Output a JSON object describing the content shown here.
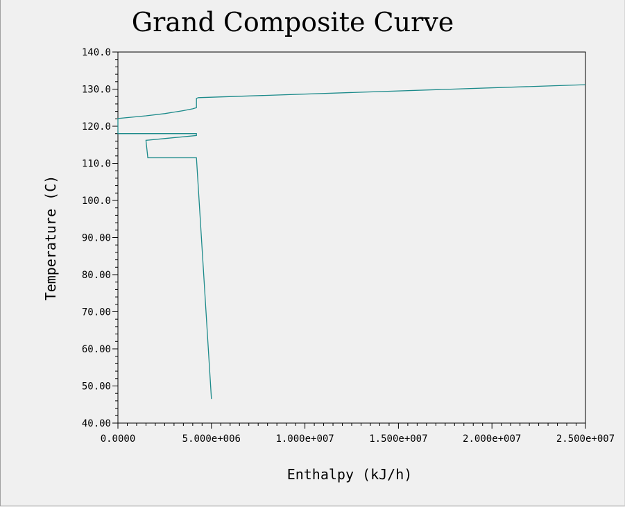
{
  "chart_data": {
    "type": "line",
    "title": "Grand Composite Curve",
    "xlabel": "Enthalpy (kJ/h)",
    "ylabel": "Temperature (C)",
    "xlim": [
      0,
      25000000
    ],
    "ylim": [
      40,
      140
    ],
    "x_ticks": [
      0,
      5000000,
      10000000,
      15000000,
      20000000,
      25000000
    ],
    "x_tick_labels": [
      "0.0000",
      "5.000e+006",
      "1.000e+007",
      "1.500e+007",
      "2.000e+007",
      "2.500e+007"
    ],
    "y_ticks": [
      40,
      50,
      60,
      70,
      80,
      90,
      100,
      110,
      120,
      130,
      140
    ],
    "y_tick_labels": [
      "40.00",
      "50.00",
      "60.00",
      "70.00",
      "80.00",
      "90.00",
      "100.0",
      "110.0",
      "120.0",
      "130.0",
      "140.0"
    ],
    "grid": false,
    "legend": "none",
    "line_color": "#1b8a8a",
    "series": [
      {
        "points": [
          [
            25000000,
            131.2
          ],
          [
            4300000,
            127.7
          ],
          [
            4200000,
            127.5
          ],
          [
            4200000,
            125.0
          ],
          [
            4000000,
            124.7
          ],
          [
            3500000,
            124.2
          ],
          [
            2500000,
            123.4
          ],
          [
            1500000,
            122.8
          ],
          [
            0,
            122.1
          ],
          [
            0,
            118.0
          ],
          [
            4200000,
            118.0
          ],
          [
            4200000,
            117.5
          ],
          [
            1500000,
            116.2
          ],
          [
            1600000,
            111.5
          ],
          [
            4200000,
            111.5
          ],
          [
            5000000,
            46.5
          ]
        ]
      }
    ]
  }
}
